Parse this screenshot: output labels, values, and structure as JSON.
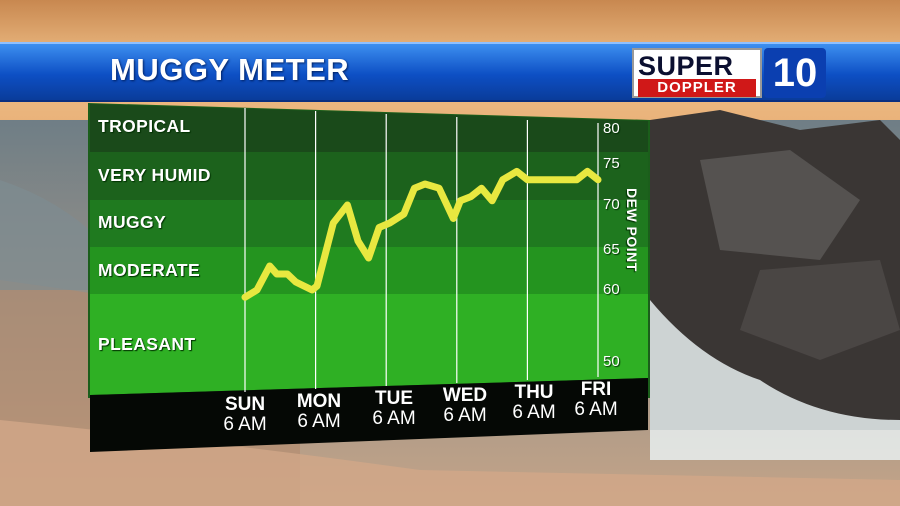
{
  "header": {
    "title": "MUGGY METER"
  },
  "logo": {
    "line1": "SUPER",
    "line2": "DOPPLER",
    "number": "10"
  },
  "chart_data": {
    "type": "line",
    "title": "MUGGY METER",
    "ylabel": "DEW POINT",
    "ylim": [
      50,
      80
    ],
    "yticks": [
      "80",
      "75",
      "70",
      "65",
      "60",
      "50"
    ],
    "categories_bands": [
      "TROPICAL",
      "VERY HUMID",
      "MUGGY",
      "MODERATE",
      "PLEASANT"
    ],
    "x_ticks": [
      {
        "day": "SUN",
        "time": "6 AM"
      },
      {
        "day": "MON",
        "time": "6 AM"
      },
      {
        "day": "TUE",
        "time": "6 AM"
      },
      {
        "day": "WED",
        "time": "6 AM"
      },
      {
        "day": "THU",
        "time": "6 AM"
      },
      {
        "day": "FRI",
        "time": "6 AM"
      }
    ],
    "series": [
      {
        "color": "#e8e840",
        "x": [
          0,
          0.17,
          0.35,
          0.45,
          0.6,
          0.72,
          0.95,
          1.02,
          1.25,
          1.45,
          1.6,
          1.75,
          1.9,
          2.05,
          2.25,
          2.4,
          2.55,
          2.75,
          2.95,
          3.05,
          3.2,
          3.35,
          3.5,
          3.65,
          3.85,
          4.0,
          4.25,
          4.5,
          4.7,
          4.85,
          5.0
        ],
        "y": [
          59,
          60,
          63,
          62,
          62,
          61,
          60,
          60.5,
          68,
          70,
          66,
          64,
          67.5,
          68,
          69,
          72,
          72.5,
          72,
          68.5,
          70.5,
          71,
          72,
          70.5,
          73,
          74,
          73,
          73,
          73,
          73,
          74,
          73
        ]
      }
    ]
  }
}
